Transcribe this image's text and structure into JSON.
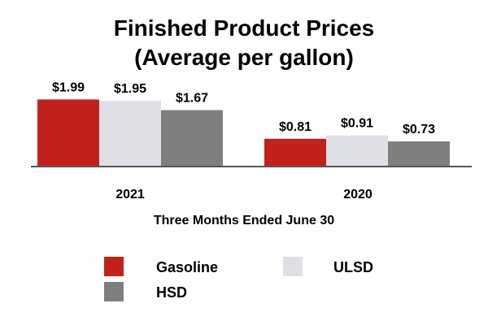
{
  "chart_data": {
    "type": "bar",
    "title_lines": [
      "Finished Product Prices",
      "(Average per gallon)"
    ],
    "categories": [
      "2021",
      "2020"
    ],
    "series": [
      {
        "name": "Gasoline",
        "values": [
          1.99,
          0.81
        ],
        "labels": [
          "$1.99",
          "$0.81"
        ],
        "color": "#C1221B"
      },
      {
        "name": "ULSD",
        "values": [
          1.95,
          0.91
        ],
        "labels": [
          "$1.95",
          "$0.91"
        ],
        "color": "#DFE0E6"
      },
      {
        "name": "HSD",
        "values": [
          1.67,
          0.73
        ],
        "labels": [
          "$1.67",
          "$0.73"
        ],
        "color": "#7F7F7F"
      }
    ],
    "xlabel": "Three Months Ended June 30",
    "ylabel": "",
    "ylim": [
      0,
      2.0
    ],
    "axis_color": "#555555"
  }
}
